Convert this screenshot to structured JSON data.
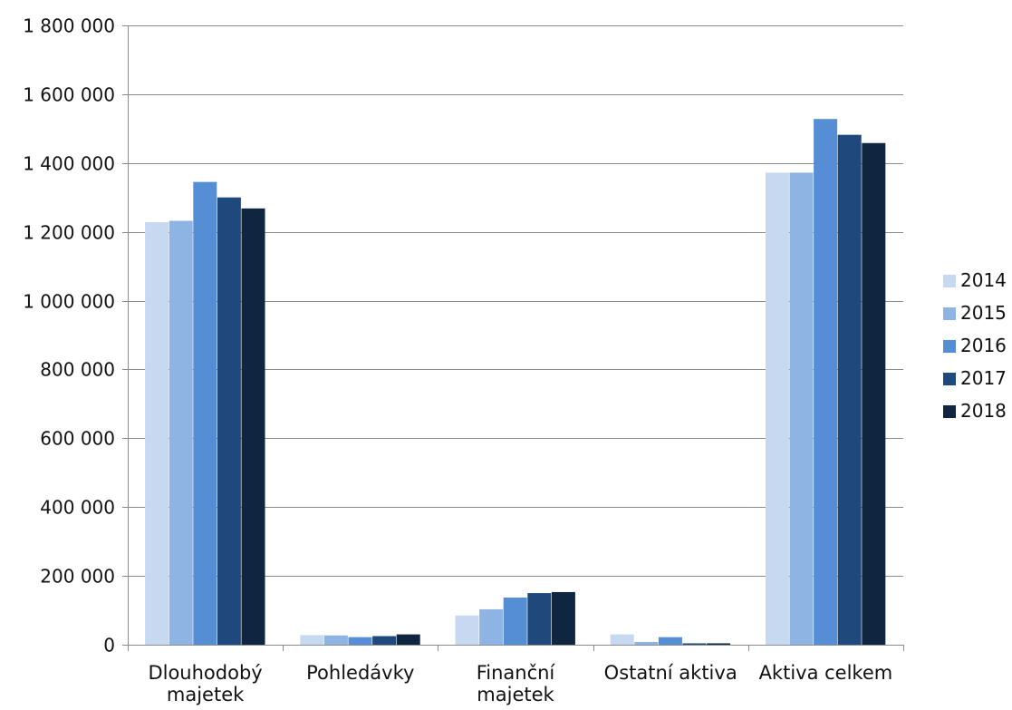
{
  "chart_data": {
    "type": "bar",
    "categories": [
      "Dlouhodobý majetek",
      "Pohledávky",
      "Finanční majetek",
      "Ostatní aktiva",
      "Aktiva celkem"
    ],
    "category_lines": [
      [
        "Dlouhodobý",
        "majetek"
      ],
      [
        "Pohledávky"
      ],
      [
        "Finanční",
        "majetek"
      ],
      [
        "Ostatní aktiva"
      ],
      [
        "Aktiva celkem"
      ]
    ],
    "series": [
      {
        "name": "2014",
        "color": "#c6d9f1",
        "values": [
          1228000,
          28000,
          85000,
          30000,
          1372000
        ]
      },
      {
        "name": "2015",
        "color": "#8eb4e3",
        "values": [
          1232000,
          27000,
          103000,
          8000,
          1372000
        ]
      },
      {
        "name": "2016",
        "color": "#558ed5",
        "values": [
          1345000,
          22000,
          137000,
          22000,
          1528000
        ]
      },
      {
        "name": "2017",
        "color": "#1f497d",
        "values": [
          1300000,
          25000,
          150000,
          4000,
          1482000
        ]
      },
      {
        "name": "2018",
        "color": "#10253f",
        "values": [
          1268000,
          30000,
          153000,
          4000,
          1458000
        ]
      }
    ],
    "ylim": [
      0,
      1800000
    ],
    "y_ticks": [
      0,
      200000,
      400000,
      600000,
      800000,
      1000000,
      1200000,
      1400000,
      1600000,
      1800000
    ],
    "y_tick_labels": [
      "0",
      "200 000",
      "400 000",
      "600 000",
      "800 000",
      "1 000 000",
      "1 200 000",
      "1 400 000",
      "1 600 000",
      "1 800 000"
    ],
    "grid": true,
    "legend_position": "right",
    "title": "",
    "xlabel": "",
    "ylabel": ""
  }
}
